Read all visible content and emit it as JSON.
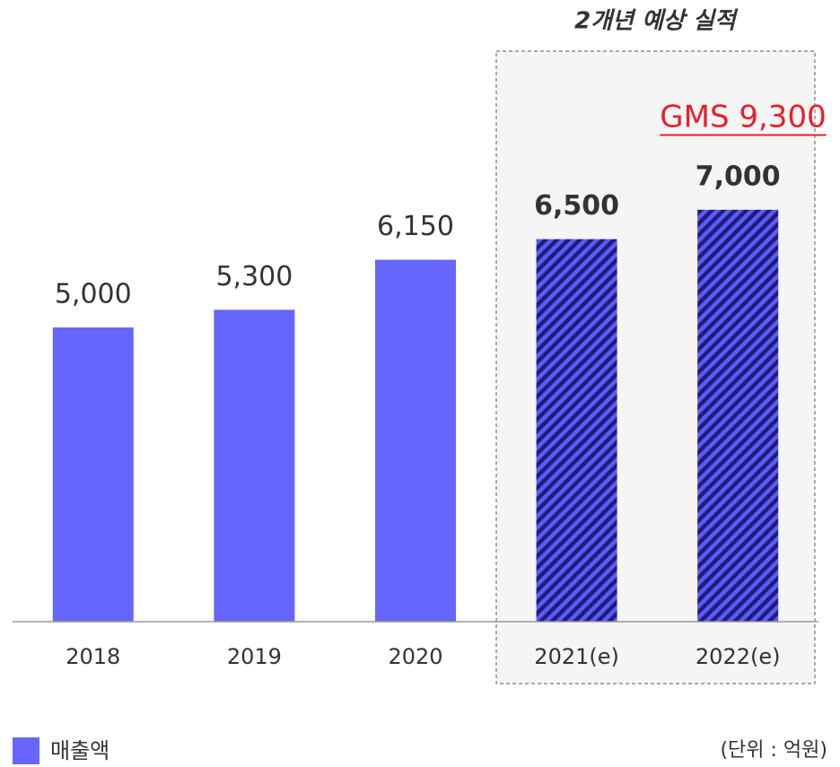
{
  "chart_data": {
    "type": "bar",
    "categories": [
      "2018",
      "2019",
      "2020",
      "2021(e)",
      "2022(e)"
    ],
    "series": [
      {
        "name": "매출액",
        "color": "#6666ff",
        "values": [
          5000,
          5300,
          6150,
          6500,
          7000
        ],
        "value_labels": [
          "5,000",
          "5,300",
          "6,150",
          "6,500",
          "7,000"
        ]
      }
    ],
    "estimated": [
      false,
      false,
      false,
      true,
      true
    ],
    "ylim": [
      0,
      10000
    ],
    "annotations": {
      "estimate_box": "2개년 예상 실적",
      "gms": "GMS 9,300",
      "unit": "(단위 : 억원)"
    },
    "legend": "bottom-left"
  }
}
